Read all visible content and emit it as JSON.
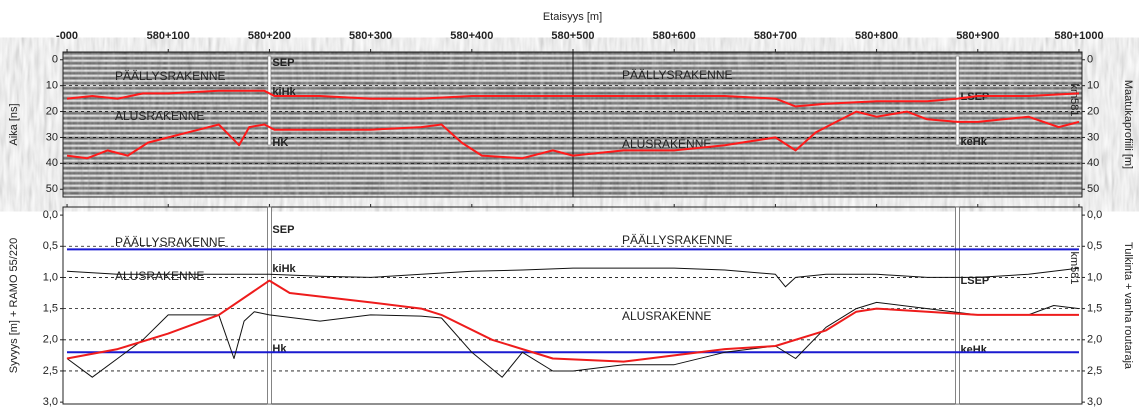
{
  "chart_data": [
    {
      "type": "line",
      "title": "Etaisyys [m]",
      "y_label": "Aika [ns]",
      "y2_label": "Maatukaprofiili [m]",
      "side_label": "km581",
      "xlim": [
        -4,
        1003
      ],
      "ylim": [
        -3,
        53
      ],
      "y_inverted": true,
      "grid": true,
      "xticks": [
        {
          "value": 0,
          "label": "-000"
        },
        {
          "value": 100,
          "label": "580+100"
        },
        {
          "value": 200,
          "label": "580+200"
        },
        {
          "value": 300,
          "label": "580+300"
        },
        {
          "value": 400,
          "label": "580+400"
        },
        {
          "value": 500,
          "label": "580+500"
        },
        {
          "value": 600,
          "label": "580+600"
        },
        {
          "value": 700,
          "label": "580+700"
        },
        {
          "value": 800,
          "label": "580+800"
        },
        {
          "value": 900,
          "label": "580+900"
        },
        {
          "value": 1000,
          "label": "580+1000"
        }
      ],
      "yticks": [
        0,
        10,
        20,
        30,
        40,
        50
      ],
      "y2lim": [
        -3,
        53
      ],
      "y2ticks": [
        0,
        10,
        20,
        30,
        40,
        50
      ],
      "series": [
        {
          "color": "#ff1a1a",
          "x": [
            0,
            25,
            50,
            75,
            100,
            150,
            195,
            205,
            250,
            300,
            350,
            400,
            450,
            500,
            550,
            600,
            650,
            700,
            720,
            750,
            800,
            850,
            880,
            900,
            950,
            1000
          ],
          "values": [
            15,
            14,
            15,
            13,
            13,
            12,
            12,
            14,
            14,
            15,
            15,
            14,
            14,
            14,
            14,
            14,
            14,
            15,
            18,
            17,
            16,
            16,
            15,
            14,
            14,
            13
          ]
        },
        {
          "color": "#ff1a1a",
          "x": [
            0,
            20,
            40,
            60,
            80,
            100,
            130,
            150,
            170,
            180,
            195,
            205,
            250,
            300,
            350,
            370,
            390,
            410,
            450,
            480,
            500,
            550,
            600,
            650,
            700,
            720,
            740,
            760,
            780,
            800,
            830,
            850,
            880,
            900,
            950,
            980,
            1000
          ],
          "values": [
            37,
            38,
            35,
            37,
            32,
            30,
            27,
            25,
            33,
            26,
            25,
            27,
            27,
            27,
            26,
            25,
            32,
            37,
            38,
            35,
            37,
            35,
            35,
            33,
            30,
            35,
            28,
            24,
            20,
            22,
            20,
            23,
            24,
            24,
            22,
            26,
            24
          ]
        }
      ],
      "markers": [
        {
          "x": 200,
          "labels": [
            "SEP",
            "kiHk",
            "HK"
          ]
        },
        {
          "x": 880,
          "labels": [
            "LSEP",
            "keHk"
          ]
        }
      ],
      "annotations": [
        "PÄÄLLYSRAKENNE",
        "ALUSRAKENNE",
        "PÄÄLLYSRAKENNE",
        "ALUSRAKENNE"
      ]
    },
    {
      "type": "line",
      "y_label": "Syvyys [m] + RAMO 55/220",
      "y2_label": "Tulkinta + vanha routaraja",
      "side_label": "km581",
      "xlim": [
        -4,
        1003
      ],
      "ylim": [
        -0.13,
        3.03
      ],
      "y_inverted": true,
      "grid": true,
      "yticks": [
        {
          "value": 0,
          "label": "0,0"
        },
        {
          "value": 0.5,
          "label": "0,5"
        },
        {
          "value": 1,
          "label": "1,0"
        },
        {
          "value": 1.5,
          "label": "1,5"
        },
        {
          "value": 2,
          "label": "2,0"
        },
        {
          "value": 2.5,
          "label": "2,5"
        },
        {
          "value": 3,
          "label": "3,0"
        }
      ],
      "y2lim": [
        -0.13,
        3.03
      ],
      "y2ticks": [
        {
          "value": 0,
          "label": "0,0"
        },
        {
          "value": 0.5,
          "label": "0,5"
        },
        {
          "value": 1,
          "label": "1,0"
        },
        {
          "value": 1.5,
          "label": "1,5"
        },
        {
          "value": 2,
          "label": "2,0"
        },
        {
          "value": 2.5,
          "label": "2,5"
        },
        {
          "value": 3,
          "label": "3,0"
        }
      ],
      "series": [
        {
          "color": "#1a1ad0",
          "x": [
            0,
            1000
          ],
          "values": [
            0.55,
            0.55
          ]
        },
        {
          "color": "#1a1ad0",
          "x": [
            0,
            1000
          ],
          "values": [
            2.2,
            2.2
          ]
        },
        {
          "color": "#111111",
          "x": [
            0,
            50,
            100,
            150,
            200,
            250,
            300,
            350,
            400,
            450,
            500,
            550,
            600,
            650,
            700,
            710,
            720,
            750,
            800,
            850,
            900,
            950,
            1000
          ],
          "values": [
            0.9,
            0.95,
            0.95,
            0.95,
            0.95,
            0.98,
            1.0,
            0.95,
            0.9,
            0.88,
            0.85,
            0.85,
            0.85,
            0.88,
            0.95,
            1.15,
            1.0,
            0.95,
            0.95,
            1.0,
            1.0,
            0.95,
            0.85
          ]
        },
        {
          "color": "#111111",
          "x": [
            0,
            25,
            50,
            75,
            100,
            150,
            165,
            175,
            185,
            200,
            250,
            300,
            350,
            370,
            400,
            430,
            450,
            480,
            500,
            550,
            600,
            650,
            700,
            720,
            750,
            780,
            800,
            850,
            900,
            950,
            975,
            1000
          ],
          "values": [
            2.3,
            2.6,
            2.3,
            2.0,
            1.6,
            1.6,
            2.3,
            1.7,
            1.55,
            1.6,
            1.7,
            1.6,
            1.62,
            1.65,
            2.2,
            2.6,
            2.2,
            2.5,
            2.5,
            2.4,
            2.4,
            2.2,
            2.1,
            2.3,
            1.8,
            1.5,
            1.4,
            1.5,
            1.6,
            1.6,
            1.45,
            1.5
          ]
        },
        {
          "color": "#ee1c1c",
          "x": [
            0,
            50,
            100,
            150,
            200,
            220,
            300,
            350,
            370,
            420,
            480,
            550,
            600,
            650,
            700,
            750,
            780,
            800,
            850,
            900,
            1000
          ],
          "values": [
            2.3,
            2.15,
            1.9,
            1.6,
            1.05,
            1.25,
            1.4,
            1.5,
            1.6,
            2.0,
            2.3,
            2.35,
            2.25,
            2.15,
            2.1,
            1.85,
            1.55,
            1.5,
            1.55,
            1.6,
            1.6
          ]
        }
      ],
      "markers": [
        {
          "x": 200,
          "labels": [
            "SEP",
            "kiHk",
            "Hk"
          ]
        },
        {
          "x": 880,
          "labels": [
            "LSEP",
            "keHk"
          ]
        }
      ],
      "annotations": [
        "PÄÄLLYSRAKENNE",
        "ALUSRAKENNE",
        "PÄÄLLYSRAKENNE",
        "ALUSRAKENNE"
      ]
    }
  ]
}
